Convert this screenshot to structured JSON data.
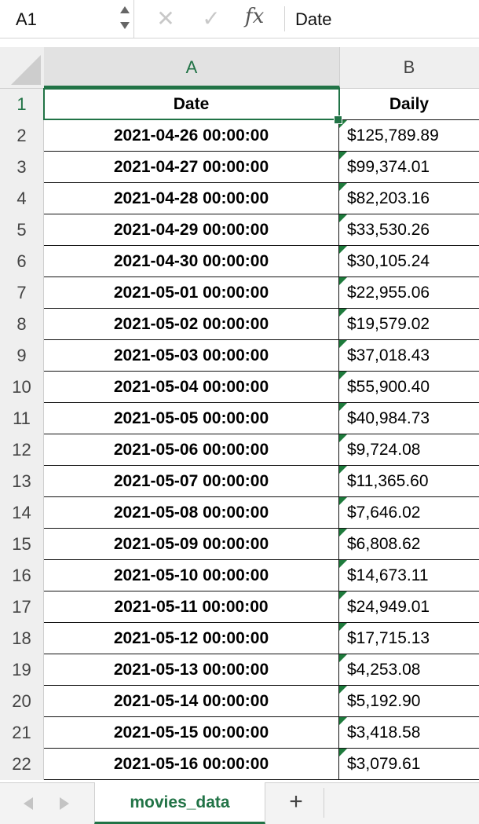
{
  "formula_bar": {
    "name_box": "A1",
    "cancel_icon": "✕",
    "enter_icon": "✓",
    "fx_icon": "fx",
    "formula": "Date"
  },
  "columns": [
    "A",
    "B"
  ],
  "rows": [
    {
      "n": "1",
      "a": "Date",
      "b": "Daily"
    },
    {
      "n": "2",
      "a": "2021-04-26 00:00:00",
      "b": "$125,789.89"
    },
    {
      "n": "3",
      "a": "2021-04-27 00:00:00",
      "b": "$99,374.01"
    },
    {
      "n": "4",
      "a": "2021-04-28 00:00:00",
      "b": "$82,203.16"
    },
    {
      "n": "5",
      "a": "2021-04-29 00:00:00",
      "b": "$33,530.26"
    },
    {
      "n": "6",
      "a": "2021-04-30 00:00:00",
      "b": "$30,105.24"
    },
    {
      "n": "7",
      "a": "2021-05-01 00:00:00",
      "b": "$22,955.06"
    },
    {
      "n": "8",
      "a": "2021-05-02 00:00:00",
      "b": "$19,579.02"
    },
    {
      "n": "9",
      "a": "2021-05-03 00:00:00",
      "b": "$37,018.43"
    },
    {
      "n": "10",
      "a": "2021-05-04 00:00:00",
      "b": "$55,900.40"
    },
    {
      "n": "11",
      "a": "2021-05-05 00:00:00",
      "b": "$40,984.73"
    },
    {
      "n": "12",
      "a": "2021-05-06 00:00:00",
      "b": "$9,724.08"
    },
    {
      "n": "13",
      "a": "2021-05-07 00:00:00",
      "b": "$11,365.60"
    },
    {
      "n": "14",
      "a": "2021-05-08 00:00:00",
      "b": "$7,646.02"
    },
    {
      "n": "15",
      "a": "2021-05-09 00:00:00",
      "b": "$6,808.62"
    },
    {
      "n": "16",
      "a": "2021-05-10 00:00:00",
      "b": "$14,673.11"
    },
    {
      "n": "17",
      "a": "2021-05-11 00:00:00",
      "b": "$24,949.01"
    },
    {
      "n": "18",
      "a": "2021-05-12 00:00:00",
      "b": "$17,715.13"
    },
    {
      "n": "19",
      "a": "2021-05-13 00:00:00",
      "b": "$4,253.08"
    },
    {
      "n": "20",
      "a": "2021-05-14 00:00:00",
      "b": "$5,192.90"
    },
    {
      "n": "21",
      "a": "2021-05-15 00:00:00",
      "b": "$3,418.58"
    },
    {
      "n": "22",
      "a": "2021-05-16 00:00:00",
      "b": "$3,079.61"
    }
  ],
  "sheet_tabs": {
    "active": "movies_data",
    "add_label": "+"
  },
  "colors": {
    "accent": "#217346",
    "error_triangle": "#1e7b3c"
  },
  "icons": [
    "stepper-icon",
    "cancel-icon",
    "enter-icon",
    "fx-icon",
    "sheet-prev-icon",
    "sheet-next-icon",
    "add-sheet-icon"
  ]
}
